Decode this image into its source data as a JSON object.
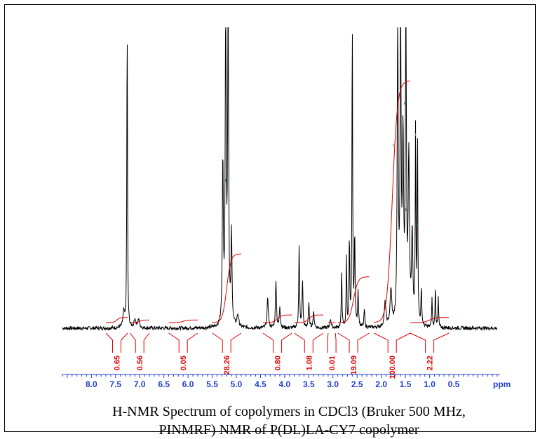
{
  "chart_data": {
    "type": "line",
    "x_axis": {
      "unit_label": "ppm",
      "reversed": true,
      "xlim": [
        8.6,
        -0.4
      ],
      "tick_labels": [
        "8.0",
        "7.5",
        "7.0",
        "6.5",
        "6.0",
        "5.5",
        "5.0",
        "4.5",
        "4.0",
        "3.5",
        "3.0",
        "2.5",
        "2.0",
        "1.5",
        "1.0",
        "0.5"
      ],
      "tick_values": [
        8.0,
        7.5,
        7.0,
        6.5,
        6.0,
        5.5,
        5.0,
        4.5,
        4.0,
        3.5,
        3.0,
        2.5,
        2.0,
        1.5,
        1.0,
        0.5
      ],
      "minor_step": 0.1,
      "color": "#1f3fd0"
    },
    "peaks": [
      {
        "ppm": 7.26,
        "height": 1.05,
        "width": 0.008
      },
      {
        "ppm": 7.33,
        "height": 0.05,
        "width": 0.02
      },
      {
        "ppm": 7.1,
        "height": 0.03,
        "width": 0.02
      },
      {
        "ppm": 7.02,
        "height": 0.03,
        "width": 0.02
      },
      {
        "ppm": 5.22,
        "height": 1.05,
        "width": 0.012
      },
      {
        "ppm": 5.17,
        "height": 1.05,
        "width": 0.012
      },
      {
        "ppm": 5.28,
        "height": 0.55,
        "width": 0.012
      },
      {
        "ppm": 5.1,
        "height": 0.3,
        "width": 0.012
      },
      {
        "ppm": 4.97,
        "height": 0.04,
        "width": 0.02
      },
      {
        "ppm": 4.35,
        "height": 0.1,
        "width": 0.015
      },
      {
        "ppm": 4.18,
        "height": 0.16,
        "width": 0.012
      },
      {
        "ppm": 4.1,
        "height": 0.07,
        "width": 0.012
      },
      {
        "ppm": 3.7,
        "height": 0.27,
        "width": 0.01
      },
      {
        "ppm": 3.63,
        "height": 0.16,
        "width": 0.01
      },
      {
        "ppm": 3.5,
        "height": 0.08,
        "width": 0.012
      },
      {
        "ppm": 3.4,
        "height": 0.05,
        "width": 0.015
      },
      {
        "ppm": 3.05,
        "height": 0.03,
        "width": 0.015
      },
      {
        "ppm": 2.82,
        "height": 0.2,
        "width": 0.008
      },
      {
        "ppm": 2.72,
        "height": 0.24,
        "width": 0.008
      },
      {
        "ppm": 2.66,
        "height": 0.3,
        "width": 0.008
      },
      {
        "ppm": 2.6,
        "height": 1.05,
        "width": 0.008
      },
      {
        "ppm": 2.55,
        "height": 0.3,
        "width": 0.01
      },
      {
        "ppm": 2.48,
        "height": 0.12,
        "width": 0.01
      },
      {
        "ppm": 2.35,
        "height": 0.06,
        "width": 0.01
      },
      {
        "ppm": 1.92,
        "height": 0.08,
        "width": 0.02
      },
      {
        "ppm": 1.8,
        "height": 0.12,
        "width": 0.02
      },
      {
        "ppm": 1.66,
        "height": 1.05,
        "width": 0.012
      },
      {
        "ppm": 1.6,
        "height": 1.05,
        "width": 0.012
      },
      {
        "ppm": 1.55,
        "height": 0.6,
        "width": 0.015
      },
      {
        "ppm": 1.49,
        "height": 1.05,
        "width": 0.012
      },
      {
        "ppm": 1.43,
        "height": 0.55,
        "width": 0.015
      },
      {
        "ppm": 1.36,
        "height": 0.3,
        "width": 0.015
      },
      {
        "ppm": 1.29,
        "height": 0.65,
        "width": 0.008
      },
      {
        "ppm": 1.25,
        "height": 0.65,
        "width": 0.008
      },
      {
        "ppm": 1.17,
        "height": 0.12,
        "width": 0.01
      },
      {
        "ppm": 0.95,
        "height": 0.1,
        "width": 0.008
      },
      {
        "ppm": 0.88,
        "height": 0.14,
        "width": 0.008
      },
      {
        "ppm": 0.82,
        "height": 0.1,
        "width": 0.008
      }
    ],
    "integrals": [
      {
        "label": "0.65",
        "from": 7.7,
        "to": 7.25,
        "rise": 0.02
      },
      {
        "label": "0.56",
        "from": 7.2,
        "to": 6.8,
        "rise": 0.01
      },
      {
        "label": "0.05",
        "from": 6.4,
        "to": 5.8,
        "rise": 0.01
      },
      {
        "label": "28.26",
        "from": 5.5,
        "to": 4.9,
        "rise": 0.27
      },
      {
        "label": "0.80",
        "from": 4.45,
        "to": 3.85,
        "rise": 0.03
      },
      {
        "label": "1.08",
        "from": 3.8,
        "to": 3.2,
        "rise": 0.03
      },
      {
        "label": "0.01",
        "from": 3.1,
        "to": 2.95,
        "rise": 0.0
      },
      {
        "label": "19.09",
        "from": 2.9,
        "to": 2.25,
        "rise": 0.18
      },
      {
        "label": "100.00",
        "from": 2.15,
        "to": 1.4,
        "rise": 0.95
      },
      {
        "label": "2.22",
        "from": 1.4,
        "to": 0.6,
        "rise": 0.02
      }
    ],
    "colors": {
      "trace": "#000000",
      "integral": "#e00000",
      "axis": "#1f3fd0"
    }
  },
  "caption": {
    "line1": "H-NMR Spectrum of copolymers in CDCl3 (Bruker 500 MHz,",
    "line2": "PINMRF) NMR of P(DL)LA-CY7 copolymer"
  }
}
